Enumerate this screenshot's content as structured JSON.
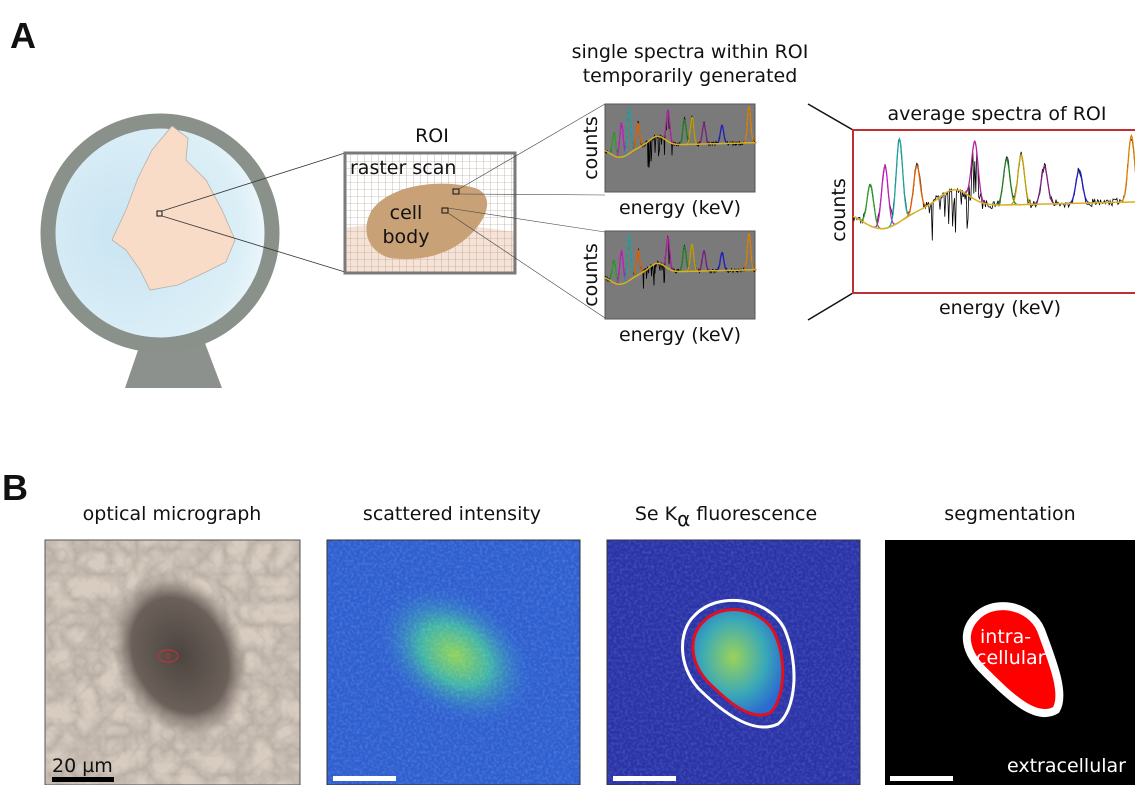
{
  "panel_a": {
    "label": "A",
    "single_spectra_title": [
      "single spectra within ROI",
      "temporarily generated"
    ],
    "roi": {
      "title": "ROI",
      "raster_label": "raster scan",
      "cell_label": [
        "cell",
        "body"
      ]
    },
    "single_spectra": [
      {
        "y_label": "counts",
        "x_label": "energy (keV)"
      },
      {
        "y_label": "counts",
        "x_label": "energy (keV)"
      }
    ],
    "average_spectrum": {
      "title": "average spectra of ROI",
      "y_label": "counts",
      "x_label": "energy (keV)"
    }
  },
  "panel_b": {
    "label": "B",
    "images": [
      {
        "title": "optical micrograph",
        "scale_bar": "20 µm"
      },
      {
        "title": "scattered intensity"
      },
      {
        "title": {
          "main": "Se K",
          "subscript": "α",
          "rest": "fluorescence"
        }
      },
      {
        "title": "segmentation",
        "region_labels": [
          "intra-",
          "cellular",
          "extracellular"
        ]
      }
    ]
  }
}
